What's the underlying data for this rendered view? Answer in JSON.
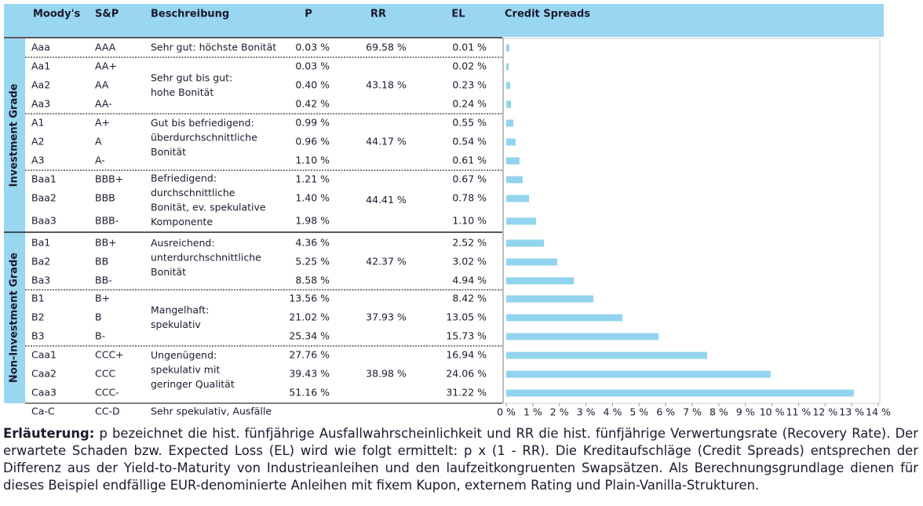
{
  "table": {
    "header": [
      "Moody's",
      "S&P",
      "Beschreibung",
      "P",
      "RR",
      "EL"
    ],
    "segments": [
      "Investment Grade",
      "Non-Investment Grade"
    ],
    "groups": [
      {
        "description": [
          "Sehr gut: höchste Bonität"
        ],
        "rr": "69.58 %",
        "rows": [
          [
            "Aaa",
            "AAA",
            "0.03 %",
            "0.01 %"
          ]
        ]
      },
      {
        "description": [
          "Sehr gut bis gut:",
          "hohe Bonität"
        ],
        "rr": "43.18 %",
        "rows": [
          [
            "Aa1",
            "AA+",
            "0.03 %",
            "0.02 %"
          ],
          [
            "Aa2",
            "AA",
            "0.40 %",
            "0.23 %"
          ],
          [
            "Aa3",
            "AA-",
            "0.42 %",
            "0.24 %"
          ]
        ]
      },
      {
        "description": [
          "Gut bis befriedigend:",
          "überdurchschnittliche",
          "Bonität"
        ],
        "rr": "44.17 %",
        "rows": [
          [
            "A1",
            "A+",
            "0.99 %",
            "0.55 %"
          ],
          [
            "A2",
            "A",
            "0.96 %",
            "0.54 %"
          ],
          [
            "A3",
            "A-",
            "1.10 %",
            "0.61 %"
          ]
        ]
      },
      {
        "description": [
          "Befriedigend:",
          "durchschnittliche",
          "Bonität, ev. spekulative",
          "Komponente"
        ],
        "rr": "44.41 %",
        "rows": [
          [
            "Baa1",
            "BBB+",
            "1.21 %",
            "0.67 %"
          ],
          [
            "Baa2",
            "BBB",
            "1.40 %",
            "0.78 %"
          ],
          [
            "Baa3",
            "BBB-",
            "1.98 %",
            "1.10 %"
          ]
        ]
      },
      {
        "description": [
          "Ausreichend:",
          "unterdurchschnittliche",
          "Bonität"
        ],
        "rr": "42.37 %",
        "rows": [
          [
            "Ba1",
            "BB+",
            "4.36 %",
            "2.52 %"
          ],
          [
            "Ba2",
            "BB",
            "5.25 %",
            "3.02 %"
          ],
          [
            "Ba3",
            "BB-",
            "8.58 %",
            "4.94 %"
          ]
        ]
      },
      {
        "description": [
          "Mangelhaft:",
          "spekulativ"
        ],
        "rr": "37.93 %",
        "rows": [
          [
            "B1",
            "B+",
            "13.56 %",
            "8.42 %"
          ],
          [
            "B2",
            "B",
            "21.02 %",
            "13.05 %"
          ],
          [
            "B3",
            "B-",
            "25.34 %",
            "15.73 %"
          ]
        ]
      },
      {
        "description": [
          "Ungenügend:",
          "spekulativ mit",
          "geringer Qualität"
        ],
        "rr": "38.98 %",
        "rows": [
          [
            "Caa1",
            "CCC+",
            "27.76 %",
            "16.94 %"
          ],
          [
            "Caa2",
            "CCC",
            "39.43 %",
            "24.06 %"
          ],
          [
            "Caa3",
            "CCC-",
            "51.16 %",
            "31.22 %"
          ]
        ]
      },
      {
        "description": [
          "Sehr spekulativ, Ausfälle"
        ],
        "rows": [
          [
            "Ca-C",
            "CC-D"
          ]
        ]
      }
    ]
  },
  "chart_data": {
    "type": "bar",
    "title": "Credit Spreads",
    "color": "#92d4ef",
    "values": [
      0.12,
      0.09,
      0.15,
      0.18,
      0.27,
      0.35,
      0.5,
      0.62,
      0.86,
      1.12,
      1.42,
      1.92,
      2.54,
      3.28,
      4.37,
      5.73,
      7.56,
      9.95,
      13.08
    ],
    "xlim": [
      0,
      14
    ],
    "xticks": [
      {
        "value": 0,
        "label": "0 %"
      },
      {
        "value": 1,
        "label": "1 %"
      },
      {
        "value": 2,
        "label": "2 %"
      },
      {
        "value": 3,
        "label": "3 %"
      },
      {
        "value": 4,
        "label": "4 %"
      },
      {
        "value": 5,
        "label": "5 %"
      },
      {
        "value": 6,
        "label": "6 %"
      },
      {
        "value": 7,
        "label": "7 %"
      },
      {
        "value": 8,
        "label": "8 %"
      },
      {
        "value": 9,
        "label": "9 %"
      },
      {
        "value": 10,
        "label": "10 %"
      },
      {
        "value": 11,
        "label": "11 %"
      },
      {
        "value": 12,
        "label": "12 %"
      },
      {
        "value": 13,
        "label": "13 %"
      },
      {
        "value": 14,
        "label": "14 %"
      }
    ]
  },
  "footer": {
    "label": "Erläuterung:",
    "text": "p bezeichnet die hist. fünfjährige Ausfallwahrscheinlichkeit und RR die hist. fünfjährige Verwertungsrate (Recovery Rate). Der erwartete Schaden bzw. Expected Loss (EL) wird wie folgt ermittelt: p x (1 - RR). Die Kreditaufschläge (Credit Spreads) entsprechen der Differenz aus der Yield-to-Maturity von Industrieanleihen und den laufzeitkongruenten Swapsätzen. Als Berechnungsgrundlage dienen für dieses Beispiel endfällige EUR-denominierte Anleihen mit fixem Kupon, externem Rating und Plain-Vanilla-Strukturen."
  }
}
